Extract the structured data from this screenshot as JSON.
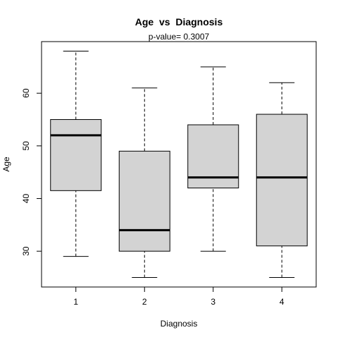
{
  "chart_data": {
    "type": "boxplot",
    "title": "Age  vs  Diagnosis",
    "subtitle": "p-value= 0.3007",
    "xlabel": "Diagnosis",
    "ylabel": "Age",
    "categories": [
      "1",
      "2",
      "3",
      "4"
    ],
    "boxes": [
      {
        "category": "1",
        "whisker_low": 29,
        "q1": 41.5,
        "median": 52,
        "q3": 55,
        "whisker_high": 68
      },
      {
        "category": "2",
        "whisker_low": 25,
        "q1": 30,
        "median": 34,
        "q3": 49,
        "whisker_high": 61
      },
      {
        "category": "3",
        "whisker_low": 30,
        "q1": 42,
        "median": 44,
        "q3": 54,
        "whisker_high": 65
      },
      {
        "category": "4",
        "whisker_low": 25,
        "q1": 31,
        "median": 44,
        "q3": 56,
        "whisker_high": 62
      }
    ],
    "ylim": [
      23.2,
      69.8
    ],
    "yticks": [
      30,
      40,
      50,
      60
    ],
    "ytick_labels": [
      "30",
      "40",
      "50",
      "60"
    ],
    "box_fill": "#d3d3d3",
    "grid": false,
    "legend": "none"
  }
}
